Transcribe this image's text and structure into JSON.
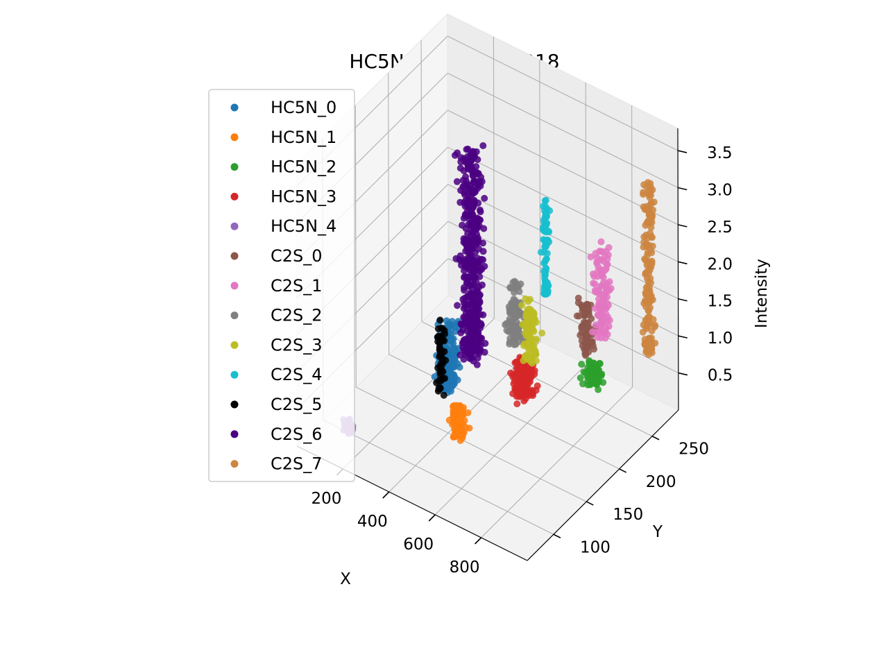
{
  "chart_data": {
    "type": "scatter",
    "projection": "3d",
    "title": "HC5N and C2S in B18",
    "xlabel": "X",
    "ylabel": "Y",
    "zlabel": "Intensity",
    "xlim": [
      0,
      1000
    ],
    "ylim": [
      60,
      290
    ],
    "zlim": [
      0.0,
      3.8
    ],
    "xticks": [
      200,
      400,
      600,
      800
    ],
    "yticks": [
      100,
      150,
      200,
      250
    ],
    "zticks": [
      0.5,
      1.0,
      1.5,
      2.0,
      2.5,
      3.0,
      3.5
    ],
    "grid": true,
    "legend_position": "upper-left",
    "series": [
      {
        "name": "HC5N_0",
        "color": "#1f77b4",
        "x": 400,
        "y": 150,
        "z_range": [
          0.6,
          1.5
        ],
        "spread": 12,
        "n": 180
      },
      {
        "name": "HC5N_1",
        "color": "#ff7f0e",
        "x": 500,
        "y": 130,
        "z_range": [
          0.3,
          0.7
        ],
        "spread": 8,
        "n": 90
      },
      {
        "name": "HC5N_2",
        "color": "#2ca02c",
        "x": 750,
        "y": 248,
        "z_range": [
          0.35,
          0.6
        ],
        "spread": 10,
        "n": 90
      },
      {
        "name": "HC5N_3",
        "color": "#d62728",
        "x": 600,
        "y": 195,
        "z_range": [
          0.4,
          0.95
        ],
        "spread": 12,
        "n": 150
      },
      {
        "name": "HC5N_4",
        "color": "#9467bd",
        "x": 170,
        "y": 80,
        "z_range": [
          0.3,
          0.45
        ],
        "spread": 6,
        "n": 40
      },
      {
        "name": "C2S_0",
        "color": "#8c564b",
        "x": 700,
        "y": 255,
        "z_range": [
          0.6,
          1.3
        ],
        "spread": 8,
        "n": 80
      },
      {
        "name": "C2S_1",
        "color": "#e377c2",
        "x": 740,
        "y": 265,
        "z_range": [
          0.8,
          2.0
        ],
        "spread": 10,
        "n": 110
      },
      {
        "name": "C2S_2",
        "color": "#7f7f7f",
        "x": 480,
        "y": 225,
        "z_range": [
          0.7,
          1.5
        ],
        "spread": 10,
        "n": 100
      },
      {
        "name": "C2S_3",
        "color": "#bcbd22",
        "x": 600,
        "y": 205,
        "z_range": [
          0.8,
          1.6
        ],
        "spread": 8,
        "n": 100
      },
      {
        "name": "C2S_4",
        "color": "#17becf",
        "x": 540,
        "y": 250,
        "z_range": [
          1.2,
          2.5
        ],
        "spread": 4,
        "n": 80
      },
      {
        "name": "C2S_5",
        "color": "#000000",
        "x": 400,
        "y": 140,
        "z_range": [
          0.6,
          1.6
        ],
        "spread": 5,
        "n": 50
      },
      {
        "name": "C2S_6",
        "color": "#4b0082",
        "x": 420,
        "y": 180,
        "z_range": [
          0.8,
          3.6
        ],
        "spread": 12,
        "n": 450
      },
      {
        "name": "C2S_7",
        "color": "#cd853f",
        "x": 900,
        "y": 280,
        "z_range": [
          0.7,
          3.0
        ],
        "spread": 6,
        "n": 150
      }
    ]
  }
}
